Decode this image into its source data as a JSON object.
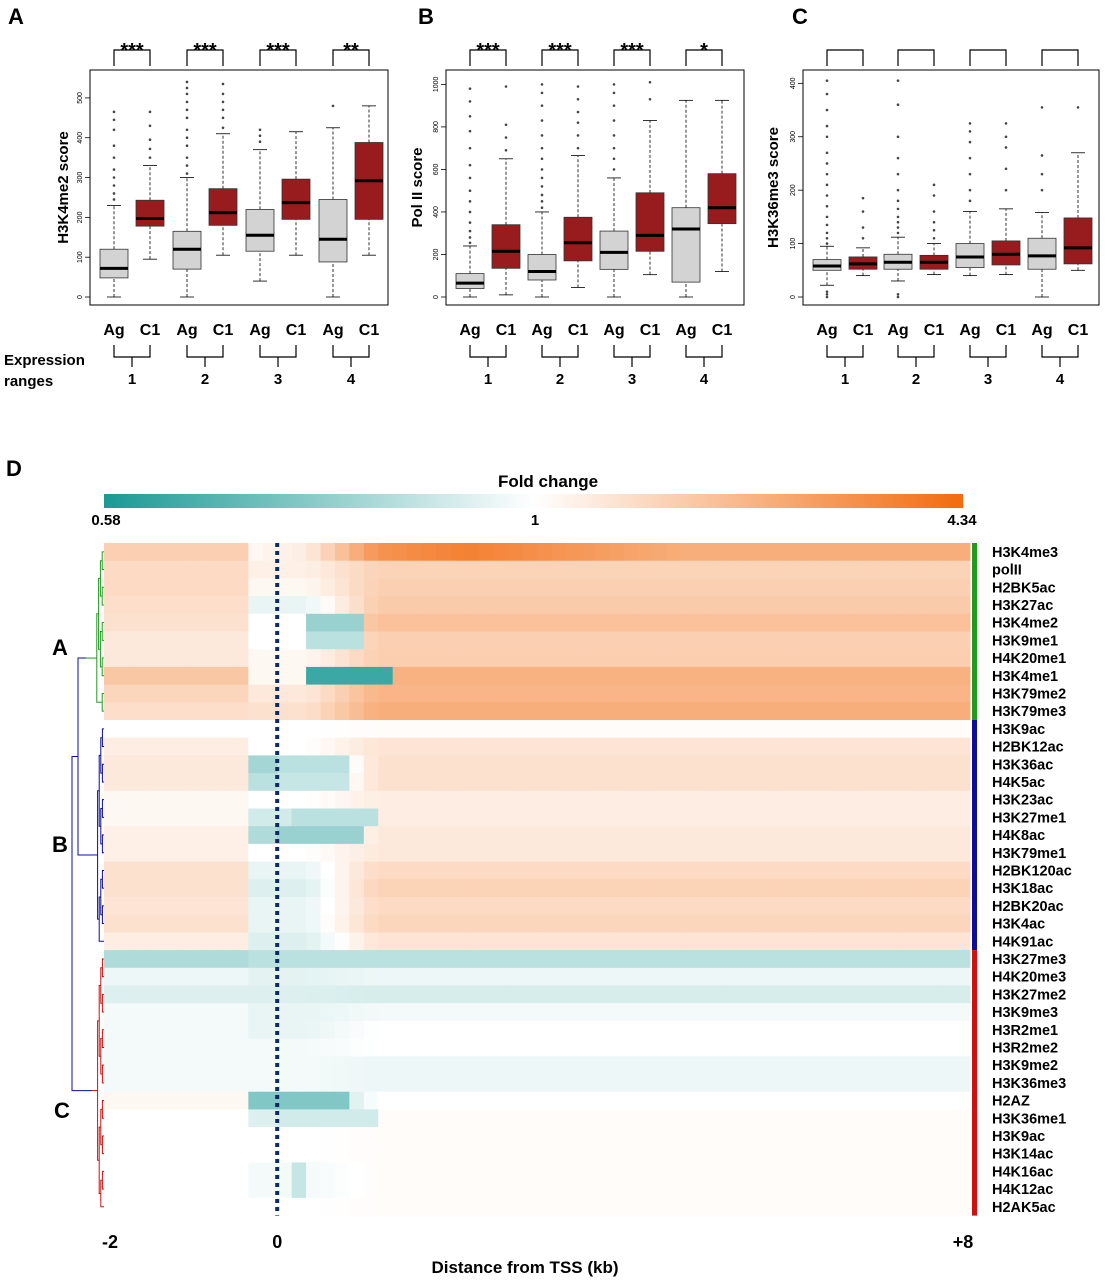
{
  "panel_letters": [
    "A",
    "B",
    "C",
    "D"
  ],
  "expression_ranges_label": [
    "Expression",
    "ranges"
  ],
  "chart_data": [
    {
      "type": "box",
      "panel": "A",
      "ylabel": "H3K4me2 score",
      "ylim": [
        0,
        550
      ],
      "yticks": [
        0,
        100,
        200,
        300,
        400,
        500
      ],
      "group_labels": [
        "Ag",
        "C1"
      ],
      "expression_ranges": [
        "1",
        "2",
        "3",
        "4"
      ],
      "significance": [
        "***",
        "***",
        "***",
        "**"
      ],
      "colors": {
        "Ag": "#d3d3d3",
        "C1": "#981c1e"
      },
      "boxes": [
        {
          "range": "1",
          "group": "Ag",
          "whisker_low": 0,
          "q1": 48,
          "median": 72,
          "q3": 120,
          "whisker_high": 230,
          "outliers": [
            245,
            260,
            280,
            300,
            320,
            350,
            380,
            420,
            445,
            465
          ]
        },
        {
          "range": "1",
          "group": "C1",
          "whisker_low": 95,
          "q1": 178,
          "median": 197,
          "q3": 243,
          "whisker_high": 330,
          "outliers": [
            350,
            372,
            395,
            430,
            465
          ]
        },
        {
          "range": "2",
          "group": "Ag",
          "whisker_low": 0,
          "q1": 70,
          "median": 120,
          "q3": 165,
          "whisker_high": 300,
          "outliers": [
            310,
            330,
            350,
            380,
            400,
            420,
            450,
            470,
            490,
            510,
            525,
            540
          ]
        },
        {
          "range": "2",
          "group": "C1",
          "whisker_low": 105,
          "q1": 180,
          "median": 212,
          "q3": 272,
          "whisker_high": 410,
          "outliers": [
            425,
            450,
            470,
            490,
            510,
            535
          ]
        },
        {
          "range": "3",
          "group": "Ag",
          "whisker_low": 40,
          "q1": 115,
          "median": 155,
          "q3": 220,
          "whisker_high": 370,
          "outliers": [
            390,
            405,
            420
          ]
        },
        {
          "range": "3",
          "group": "C1",
          "whisker_low": 105,
          "q1": 195,
          "median": 237,
          "q3": 296,
          "whisker_high": 415,
          "outliers": []
        },
        {
          "range": "4",
          "group": "Ag",
          "whisker_low": 0,
          "q1": 88,
          "median": 145,
          "q3": 245,
          "whisker_high": 425,
          "outliers": [
            480
          ]
        },
        {
          "range": "4",
          "group": "C1",
          "whisker_low": 105,
          "q1": 195,
          "median": 292,
          "q3": 388,
          "whisker_high": 480,
          "outliers": []
        }
      ]
    },
    {
      "type": "box",
      "panel": "B",
      "ylabel": "Pol II score",
      "ylim": [
        0,
        1030
      ],
      "yticks": [
        0,
        200,
        400,
        600,
        800,
        1000
      ],
      "group_labels": [
        "Ag",
        "C1"
      ],
      "expression_ranges": [
        "1",
        "2",
        "3",
        "4"
      ],
      "significance": [
        "***",
        "***",
        "***",
        "*"
      ],
      "colors": {
        "Ag": "#d3d3d3",
        "C1": "#981c1e"
      },
      "boxes": [
        {
          "range": "1",
          "group": "Ag",
          "whisker_low": 0,
          "q1": 40,
          "median": 65,
          "q3": 110,
          "whisker_high": 240,
          "outliers": [
            255,
            280,
            310,
            350,
            400,
            450,
            500,
            560,
            620,
            700,
            780,
            850,
            920,
            980
          ]
        },
        {
          "range": "1",
          "group": "C1",
          "whisker_low": 10,
          "q1": 135,
          "median": 215,
          "q3": 340,
          "whisker_high": 650,
          "outliers": [
            690,
            750,
            810,
            990
          ]
        },
        {
          "range": "2",
          "group": "Ag",
          "whisker_low": 0,
          "q1": 80,
          "median": 120,
          "q3": 200,
          "whisker_high": 400,
          "outliers": [
            420,
            450,
            480,
            520,
            560,
            600,
            650,
            700,
            760,
            830,
            900,
            960,
            1000
          ]
        },
        {
          "range": "2",
          "group": "C1",
          "whisker_low": 45,
          "q1": 170,
          "median": 255,
          "q3": 375,
          "whisker_high": 665,
          "outliers": [
            700,
            760,
            820,
            870,
            930,
            990
          ]
        },
        {
          "range": "3",
          "group": "Ag",
          "whisker_low": 0,
          "q1": 130,
          "median": 210,
          "q3": 310,
          "whisker_high": 560,
          "outliers": [
            600,
            650,
            700,
            760,
            830,
            900,
            960,
            1000
          ]
        },
        {
          "range": "3",
          "group": "C1",
          "whisker_low": 105,
          "q1": 215,
          "median": 290,
          "q3": 490,
          "whisker_high": 830,
          "outliers": [
            930,
            1010
          ]
        },
        {
          "range": "4",
          "group": "Ag",
          "whisker_low": 0,
          "q1": 70,
          "median": 320,
          "q3": 420,
          "whisker_high": 925,
          "outliers": []
        },
        {
          "range": "4",
          "group": "C1",
          "whisker_low": 120,
          "q1": 345,
          "median": 420,
          "q3": 580,
          "whisker_high": 925,
          "outliers": []
        }
      ]
    },
    {
      "type": "box",
      "panel": "C",
      "ylabel": "H3K36me3  score",
      "ylim": [
        0,
        410
      ],
      "yticks": [
        0,
        100,
        200,
        300,
        400
      ],
      "group_labels": [
        "Ag",
        "C1"
      ],
      "expression_ranges": [
        "1",
        "2",
        "3",
        "4"
      ],
      "significance": [
        "",
        "",
        "",
        ""
      ],
      "colors": {
        "Ag": "#d3d3d3",
        "C1": "#981c1e"
      },
      "boxes": [
        {
          "range": "1",
          "group": "Ag",
          "whisker_low": 22,
          "q1": 50,
          "median": 58,
          "q3": 70,
          "whisker_high": 95,
          "outliers": [
            0,
            5,
            10,
            100,
            110,
            120,
            135,
            150,
            170,
            190,
            210,
            230,
            250,
            270,
            300,
            320,
            350,
            380,
            405
          ]
        },
        {
          "range": "1",
          "group": "C1",
          "whisker_low": 40,
          "q1": 52,
          "median": 62,
          "q3": 75,
          "whisker_high": 92,
          "outliers": [
            110,
            130,
            160,
            185
          ]
        },
        {
          "range": "2",
          "group": "Ag",
          "whisker_low": 30,
          "q1": 52,
          "median": 65,
          "q3": 80,
          "whisker_high": 112,
          "outliers": [
            0,
            5,
            120,
            130,
            140,
            150,
            165,
            180,
            200,
            230,
            260,
            300,
            360,
            405
          ]
        },
        {
          "range": "2",
          "group": "C1",
          "whisker_low": 42,
          "q1": 52,
          "median": 65,
          "q3": 78,
          "whisker_high": 100,
          "outliers": [
            110,
            125,
            140,
            160,
            190,
            210
          ]
        },
        {
          "range": "3",
          "group": "Ag",
          "whisker_low": 40,
          "q1": 55,
          "median": 75,
          "q3": 100,
          "whisker_high": 160,
          "outliers": [
            180,
            200,
            230,
            260,
            290,
            310,
            325
          ]
        },
        {
          "range": "3",
          "group": "C1",
          "whisker_low": 42,
          "q1": 60,
          "median": 80,
          "q3": 105,
          "whisker_high": 165,
          "outliers": [
            200,
            240,
            280,
            300,
            325
          ]
        },
        {
          "range": "4",
          "group": "Ag",
          "whisker_low": 0,
          "q1": 52,
          "median": 77,
          "q3": 110,
          "whisker_high": 158,
          "outliers": [
            200,
            230,
            265,
            355
          ]
        },
        {
          "range": "4",
          "group": "C1",
          "whisker_low": 50,
          "q1": 62,
          "median": 92,
          "q3": 148,
          "whisker_high": 270,
          "outliers": [
            355
          ]
        }
      ]
    },
    {
      "type": "heatmap",
      "panel": "D",
      "legend_title": "Fold change",
      "legend_ticks": [
        "0.58",
        "1",
        "4.34"
      ],
      "color_scale": {
        "low": "#1a9995",
        "mid": "#ffffff",
        "high": "#f26b0f"
      },
      "xlabel": "Distance from TSS (kb)",
      "x_ticks": [
        "-2",
        "0",
        "+8"
      ],
      "x_range_kb": [
        -2,
        8
      ],
      "tss_kb": 0,
      "clusters": [
        {
          "label": "A",
          "color": "#1f9b1f",
          "rows": [
            "H3K4me3",
            "polII",
            "H2BK5ac",
            "H3K27ac",
            "H3K4me2",
            "H3K9me1",
            "H4K20me1",
            "H3K4me1",
            "H3K79me2",
            "H3K79me3"
          ]
        },
        {
          "label": "B",
          "color": "#0d0d9a",
          "rows": [
            "H3K9ac",
            "H2BK12ac",
            "H3K36ac",
            "H4K5ac",
            "H3K23ac",
            "H3K27me1",
            "H4K8ac",
            "H3K79me1",
            "H2BK120ac",
            "H3K18ac",
            "H2BK20ac",
            "H3K4ac",
            "H4K91ac"
          ]
        },
        {
          "label": "C",
          "color": "#cc1111",
          "rows": [
            "H3K27me3",
            "H4K20me3",
            "H3K27me2",
            "H3K9me3",
            "H3R2me1",
            "H3R2me2",
            "H3K9me2",
            "H3K36me3",
            "H2AZ",
            "H3K36me1",
            "H3K9ac",
            "H3K14ac",
            "H4K16ac",
            "H4K12ac",
            "H2AK5ac"
          ]
        }
      ],
      "row_profiles": {
        "H3K4me3": {
          "up": 0.32,
          "tss": 0.05,
          "body": 0.55,
          "peak": 0.85,
          "peak_center_kb": 2.2
        },
        "polII": {
          "up": 0.25,
          "tss": 0.1,
          "body": 0.3
        },
        "H2BK5ac": {
          "up": 0.25,
          "tss": 0.05,
          "body": 0.32
        },
        "H3K27ac": {
          "up": 0.22,
          "tss": -0.1,
          "body": 0.35
        },
        "H3K4me2": {
          "up": 0.2,
          "tss": 0.0,
          "body": 0.42,
          "dip": -0.45,
          "dip_kb": [
            0.4,
            1.0
          ]
        },
        "H3K9me1": {
          "up": 0.15,
          "tss": 0.0,
          "body": 0.32,
          "dip": -0.3,
          "dip_kb": [
            0.4,
            1.0
          ]
        },
        "H4K20me1": {
          "up": 0.15,
          "tss": 0.05,
          "body": 0.33
        },
        "H3K4me1": {
          "up": 0.38,
          "tss": 0.05,
          "body": 0.52,
          "dip": -0.85,
          "dip_kb": [
            0.3,
            1.3
          ]
        },
        "H3K79me2": {
          "up": 0.28,
          "tss": 0.15,
          "body": 0.5
        },
        "H3K79me3": {
          "up": 0.22,
          "tss": 0.2,
          "body": 0.55
        },
        "H3K9ac": {
          "up": 0.0,
          "tss": 0.0,
          "body": 0.02
        },
        "H2BK12ac": {
          "up": 0.12,
          "tss": 0.0,
          "body": 0.18
        },
        "H3K36ac": {
          "up": 0.15,
          "tss": -0.4,
          "body": 0.2,
          "dip": -0.3,
          "dip_kb": [
            0.0,
            0.8
          ]
        },
        "H4K5ac": {
          "up": 0.15,
          "tss": -0.3,
          "body": 0.2,
          "dip": -0.25,
          "dip_kb": [
            0.0,
            0.9
          ]
        },
        "H3K23ac": {
          "up": 0.05,
          "tss": 0.0,
          "body": 0.12
        },
        "H3K27me1": {
          "up": 0.05,
          "tss": -0.2,
          "body": 0.12,
          "dip": -0.3,
          "dip_kb": [
            0.1,
            1.2
          ]
        },
        "H4K8ac": {
          "up": 0.1,
          "tss": -0.35,
          "body": 0.15,
          "dip": -0.45,
          "dip_kb": [
            0.0,
            1.0
          ]
        },
        "H3K79me1": {
          "up": 0.1,
          "tss": 0.0,
          "body": 0.15
        },
        "H2BK120ac": {
          "up": 0.2,
          "tss": -0.1,
          "body": 0.25
        },
        "H3K18ac": {
          "up": 0.2,
          "tss": -0.15,
          "body": 0.3
        },
        "H2BK20ac": {
          "up": 0.18,
          "tss": -0.1,
          "body": 0.25
        },
        "H3K4ac": {
          "up": 0.2,
          "tss": -0.1,
          "body": 0.28
        },
        "H4K91ac": {
          "up": 0.12,
          "tss": -0.15,
          "body": 0.18
        },
        "H3K27me3": {
          "up": -0.35,
          "tss": -0.3,
          "body": -0.3
        },
        "H4K20me3": {
          "up": -0.08,
          "tss": -0.12,
          "body": -0.08
        },
        "H3K27me2": {
          "up": -0.15,
          "tss": -0.15,
          "body": -0.18
        },
        "H3K9me3": {
          "up": -0.05,
          "tss": -0.1,
          "body": -0.05
        },
        "H3R2me1": {
          "up": -0.05,
          "tss": -0.1,
          "body": 0.0
        },
        "H3R2me2": {
          "up": -0.05,
          "tss": -0.05,
          "body": 0.0
        },
        "H3K9me2": {
          "up": -0.05,
          "tss": -0.05,
          "body": -0.08
        },
        "H3K36me3": {
          "up": -0.05,
          "tss": -0.05,
          "body": -0.08
        },
        "H2AZ": {
          "up": 0.05,
          "tss": -0.45,
          "body": 0.0,
          "dip": -0.55,
          "dip_kb": [
            -0.3,
            0.9
          ]
        },
        "H3K36me1": {
          "up": 0.0,
          "tss": -0.15,
          "body": 0.02,
          "dip": -0.2,
          "dip_kb": [
            0.0,
            1.1
          ]
        },
        "H3K14ac": {
          "up": 0.0,
          "tss": 0.0,
          "body": 0.02
        },
        "H4K16ac": {
          "up": 0.0,
          "tss": -0.05,
          "body": 0.02,
          "dip": -0.25,
          "dip_kb": [
            0.1,
            0.4
          ]
        },
        "H4K12ac": {
          "up": 0.0,
          "tss": -0.05,
          "body": 0.02,
          "dip": -0.25,
          "dip_kb": [
            0.1,
            0.4
          ]
        },
        "H2AK5ac": {
          "up": 0.0,
          "tss": 0.0,
          "body": 0.02
        }
      }
    }
  ]
}
